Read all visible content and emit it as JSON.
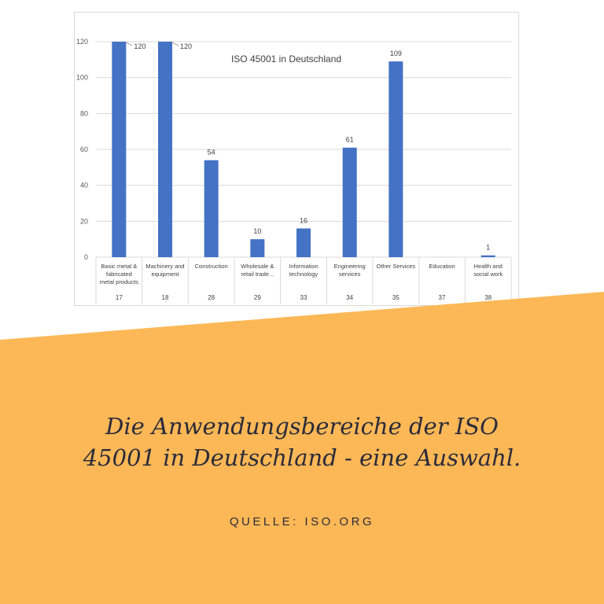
{
  "chart_data": {
    "type": "bar",
    "title": "ISO 45001 in Deutschland",
    "categories": [
      "Basic metal & fabricated metal products",
      "Machinery and equipment",
      "Construction",
      "Wholesale & retail trade...",
      "Information technology",
      "Engineering services",
      "Other Services",
      "Education",
      "Health and social work"
    ],
    "category_lines": [
      [
        "Basic metal &",
        "fabricated",
        "metal products"
      ],
      [
        "Machinery and",
        "equipment"
      ],
      [
        "Construction"
      ],
      [
        "Wholesale &",
        "retail trade..."
      ],
      [
        "Information",
        "technology"
      ],
      [
        "Engineering",
        "services"
      ],
      [
        "Other Services"
      ],
      [
        "Education"
      ],
      [
        "Health and",
        "social work"
      ]
    ],
    "codes": [
      "17",
      "18",
      "28",
      "29",
      "33",
      "34",
      "35",
      "37",
      "38"
    ],
    "values": [
      120,
      120,
      54,
      10,
      16,
      61,
      109,
      0,
      1
    ],
    "data_labels": [
      "120",
      "120",
      "54",
      "10",
      "16",
      "61",
      "109",
      "",
      "1"
    ],
    "ylim": [
      0,
      120
    ],
    "yticks": [
      0,
      20,
      40,
      60,
      80,
      100,
      120
    ],
    "grid": true,
    "bar_color": "#4472c4"
  },
  "banner": {
    "caption_line1": "Die Anwendungsbereiche der ISO",
    "caption_line2": "45001 in Deutschland - eine Auswahl.",
    "source": "QUELLE: ISO.ORG",
    "color": "#fcb856"
  }
}
